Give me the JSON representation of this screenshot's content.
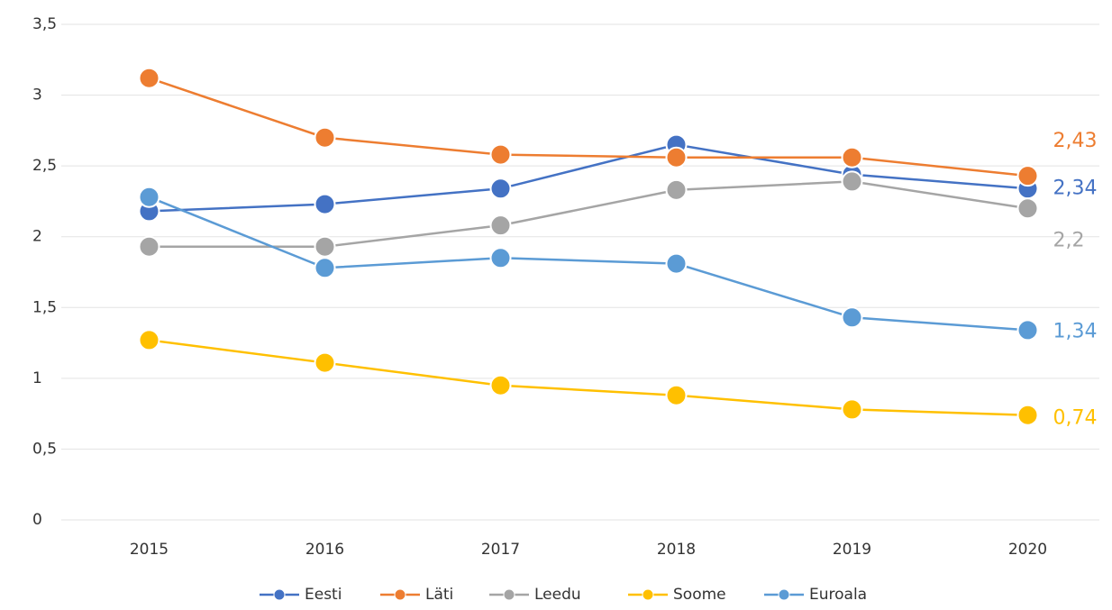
{
  "chart_data": {
    "type": "line",
    "categories": [
      "2015",
      "2016",
      "2017",
      "2018",
      "2019",
      "2020"
    ],
    "series": [
      {
        "name": "Eesti",
        "color": "#4472c4",
        "values": [
          2.18,
          2.23,
          2.34,
          2.65,
          2.44,
          2.34
        ],
        "value_labels": [
          null,
          null,
          null,
          null,
          null,
          "2,34"
        ]
      },
      {
        "name": "Läti",
        "color": "#ed7d31",
        "values": [
          3.12,
          2.7,
          2.58,
          2.56,
          2.56,
          2.43
        ],
        "value_labels": [
          null,
          null,
          null,
          null,
          null,
          "2,43"
        ]
      },
      {
        "name": "Leedu",
        "color": "#a5a5a5",
        "values": [
          1.93,
          1.93,
          2.08,
          2.33,
          2.39,
          2.2
        ],
        "value_labels": [
          null,
          null,
          null,
          null,
          null,
          "2,2"
        ]
      },
      {
        "name": "Soome",
        "color": "#ffc000",
        "values": [
          1.27,
          1.11,
          0.95,
          0.88,
          0.78,
          0.74
        ],
        "value_labels": [
          null,
          null,
          null,
          null,
          null,
          "0,74"
        ]
      },
      {
        "name": "Euroala",
        "color": "#5b9bd5",
        "values": [
          2.28,
          1.78,
          1.85,
          1.81,
          1.43,
          1.34
        ],
        "value_labels": [
          null,
          null,
          null,
          null,
          null,
          "1,34"
        ]
      }
    ],
    "ylim": [
      0,
      3.5
    ],
    "yticks": [
      0,
      {
        "value": 0.5,
        "label": "0,5"
      },
      1,
      {
        "value": 1.5,
        "label": "1,5"
      },
      2,
      {
        "value": 2.5,
        "label": "2,5"
      },
      3,
      {
        "value": 3.5,
        "label": "3,5"
      }
    ],
    "grid": true,
    "legend": "bottom"
  }
}
